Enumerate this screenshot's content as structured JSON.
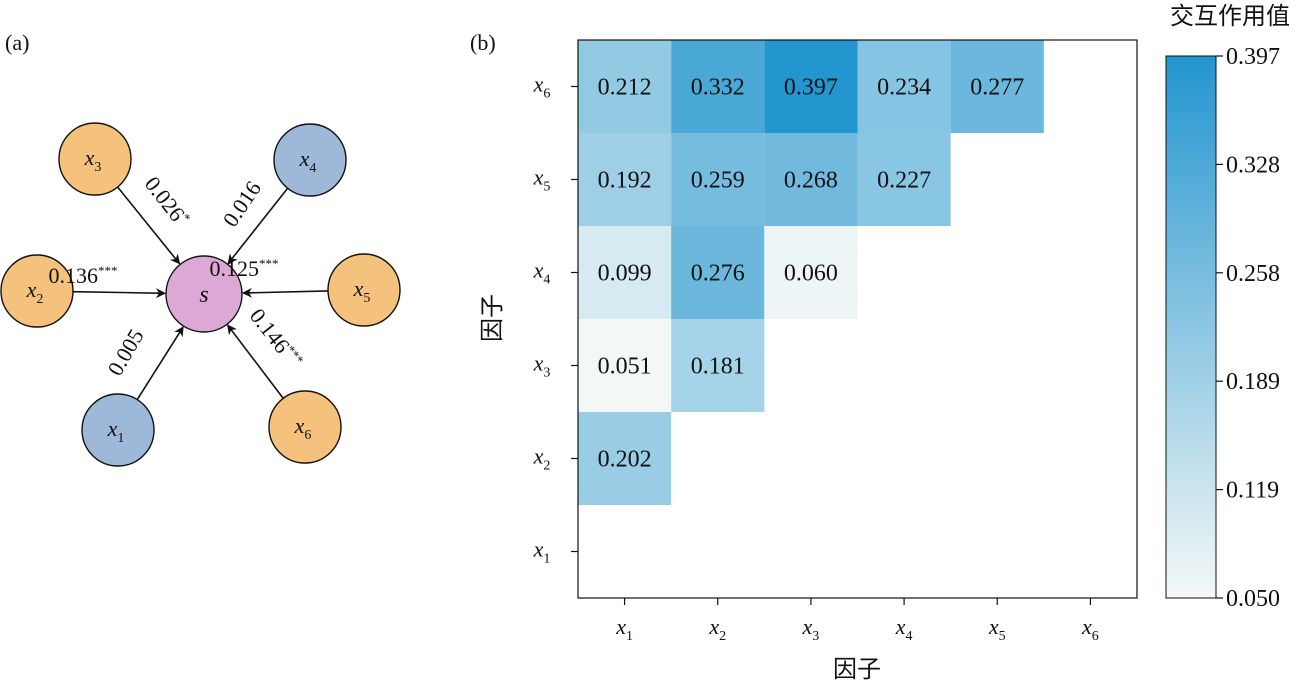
{
  "panel_a": {
    "label": "(a)",
    "center": {
      "name": "s"
    },
    "nodes": [
      {
        "id": "x1",
        "sym": "x",
        "sub": "1",
        "color": "#9db8d8",
        "coef": "0.005",
        "sig": ""
      },
      {
        "id": "x2",
        "sym": "x",
        "sub": "2",
        "color": "#f5c27e",
        "coef": "0.136",
        "sig": "***"
      },
      {
        "id": "x3",
        "sym": "x",
        "sub": "3",
        "color": "#f5c27e",
        "coef": "0.026",
        "sig": "*"
      },
      {
        "id": "x4",
        "sym": "x",
        "sub": "4",
        "color": "#9db8d8",
        "coef": "0.016",
        "sig": ""
      },
      {
        "id": "x5",
        "sym": "x",
        "sub": "5",
        "color": "#f5c27e",
        "coef": "0.125",
        "sig": "***"
      },
      {
        "id": "x6",
        "sym": "x",
        "sub": "6",
        "color": "#f5c27e",
        "coef": "0.146",
        "sig": "***"
      }
    ],
    "center_color": "#dda8d6"
  },
  "panel_b": {
    "label": "(b)",
    "colorbar_title": "交互作用值",
    "colorbar_ticks": [
      "0.397",
      "0.328",
      "0.258",
      "0.189",
      "0.119",
      "0.050"
    ]
  },
  "chart_data": {
    "type": "heatmap",
    "xlabel": "因子",
    "ylabel": "因子",
    "x_categories": [
      {
        "sym": "x",
        "sub": "1"
      },
      {
        "sym": "x",
        "sub": "2"
      },
      {
        "sym": "x",
        "sub": "3"
      },
      {
        "sym": "x",
        "sub": "4"
      },
      {
        "sym": "x",
        "sub": "5"
      },
      {
        "sym": "x",
        "sub": "6"
      }
    ],
    "y_categories": [
      {
        "sym": "x",
        "sub": "1"
      },
      {
        "sym": "x",
        "sub": "2"
      },
      {
        "sym": "x",
        "sub": "3"
      },
      {
        "sym": "x",
        "sub": "4"
      },
      {
        "sym": "x",
        "sub": "5"
      },
      {
        "sym": "x",
        "sub": "6"
      }
    ],
    "cells": [
      {
        "x": 1,
        "y": 2,
        "value": 0.202,
        "text": "0.202"
      },
      {
        "x": 1,
        "y": 3,
        "value": 0.051,
        "text": "0.051"
      },
      {
        "x": 2,
        "y": 3,
        "value": 0.181,
        "text": "0.181"
      },
      {
        "x": 1,
        "y": 4,
        "value": 0.099,
        "text": "0.099"
      },
      {
        "x": 2,
        "y": 4,
        "value": 0.276,
        "text": "0.276"
      },
      {
        "x": 3,
        "y": 4,
        "value": 0.06,
        "text": "0.060"
      },
      {
        "x": 1,
        "y": 5,
        "value": 0.192,
        "text": "0.192"
      },
      {
        "x": 2,
        "y": 5,
        "value": 0.259,
        "text": "0.259"
      },
      {
        "x": 3,
        "y": 5,
        "value": 0.268,
        "text": "0.268"
      },
      {
        "x": 4,
        "y": 5,
        "value": 0.227,
        "text": "0.227"
      },
      {
        "x": 1,
        "y": 6,
        "value": 0.212,
        "text": "0.212"
      },
      {
        "x": 2,
        "y": 6,
        "value": 0.332,
        "text": "0.332"
      },
      {
        "x": 3,
        "y": 6,
        "value": 0.397,
        "text": "0.397"
      },
      {
        "x": 4,
        "y": 6,
        "value": 0.234,
        "text": "0.234"
      },
      {
        "x": 5,
        "y": 6,
        "value": 0.277,
        "text": "0.277"
      }
    ],
    "color_range": [
      0.05,
      0.397
    ],
    "colors": {
      "low": "#f4f8f7",
      "high": "#2395cf"
    }
  }
}
